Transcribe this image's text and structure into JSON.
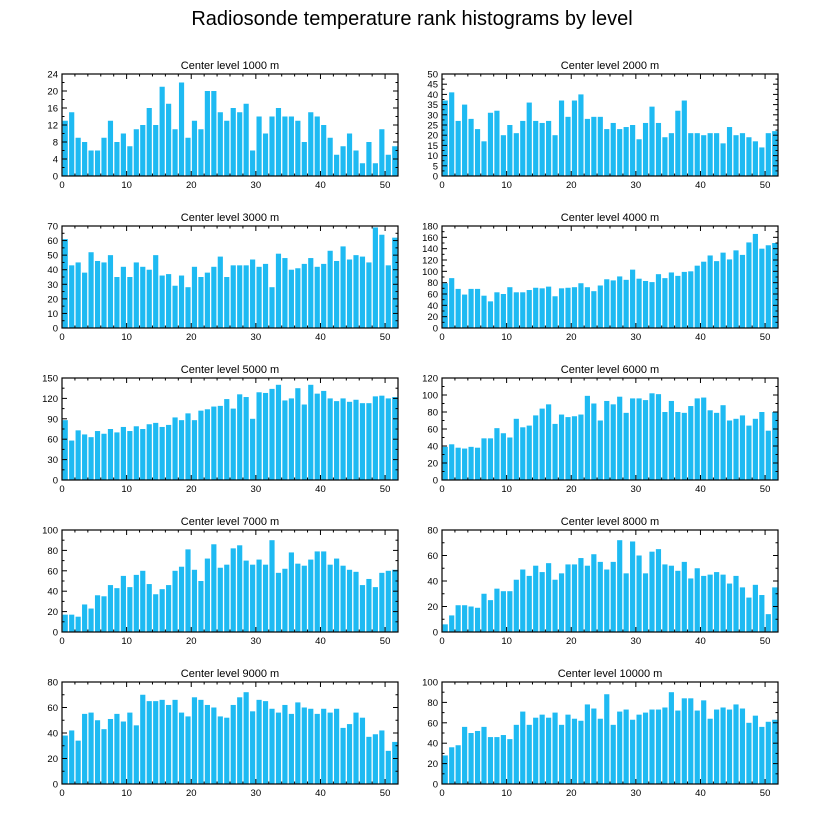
{
  "figure_title": "Radiosonde temperature rank histograms by level",
  "chart_data": [
    {
      "type": "bar",
      "title": "Center level 1000 m",
      "x_range": [
        0,
        52
      ],
      "ylim": [
        0,
        24
      ],
      "xticks": [
        0,
        10,
        20,
        30,
        40,
        50
      ],
      "yticks": [
        0,
        4,
        8,
        12,
        16,
        20,
        24
      ],
      "values": [
        13,
        15,
        9,
        8,
        6,
        6,
        9,
        13,
        8,
        10,
        7,
        11,
        12,
        16,
        12,
        21,
        17,
        11,
        22,
        9,
        13,
        11,
        20,
        20,
        15,
        13,
        16,
        15,
        17,
        6,
        14,
        10,
        14,
        16,
        14,
        14,
        13,
        8,
        15,
        14,
        12,
        9,
        5,
        7,
        10,
        6,
        3,
        8,
        3,
        11,
        5,
        7
      ]
    },
    {
      "type": "bar",
      "title": "Center level 2000 m",
      "x_range": [
        0,
        52
      ],
      "ylim": [
        0,
        50
      ],
      "xticks": [
        0,
        10,
        20,
        30,
        40,
        50
      ],
      "yticks": [
        0,
        5,
        10,
        15,
        20,
        25,
        30,
        35,
        40,
        45,
        50
      ],
      "values": [
        37,
        41,
        27,
        35,
        28,
        23,
        17,
        31,
        32,
        20,
        25,
        21,
        27,
        36,
        27,
        26,
        27,
        20,
        37,
        29,
        37,
        40,
        28,
        29,
        29,
        23,
        26,
        23,
        24,
        25,
        18,
        26,
        34,
        26,
        19,
        21,
        32,
        37,
        21,
        21,
        20,
        21,
        21,
        16,
        24,
        20,
        21,
        19,
        17,
        14,
        21,
        22
      ]
    },
    {
      "type": "bar",
      "title": "Center level 3000 m",
      "x_range": [
        0,
        52
      ],
      "ylim": [
        0,
        70
      ],
      "xticks": [
        0,
        10,
        20,
        30,
        40,
        50
      ],
      "yticks": [
        0,
        10,
        20,
        30,
        40,
        50,
        60,
        70
      ],
      "values": [
        61,
        43,
        45,
        38,
        52,
        46,
        45,
        50,
        35,
        42,
        35,
        45,
        42,
        40,
        50,
        36,
        37,
        29,
        36,
        28,
        42,
        35,
        38,
        42,
        49,
        35,
        43,
        43,
        43,
        47,
        42,
        44,
        28,
        51,
        48,
        40,
        41,
        44,
        48,
        42,
        44,
        53,
        46,
        56,
        47,
        50,
        49,
        45,
        69,
        64,
        43,
        62
      ]
    },
    {
      "type": "bar",
      "title": "Center level 4000 m",
      "x_range": [
        0,
        52
      ],
      "ylim": [
        0,
        180
      ],
      "xticks": [
        0,
        10,
        20,
        30,
        40,
        50
      ],
      "yticks": [
        0,
        20,
        40,
        60,
        80,
        100,
        120,
        140,
        160,
        180
      ],
      "values": [
        79,
        88,
        69,
        59,
        69,
        69,
        57,
        47,
        63,
        60,
        72,
        63,
        63,
        67,
        71,
        70,
        73,
        56,
        70,
        71,
        72,
        79,
        72,
        65,
        75,
        86,
        84,
        91,
        85,
        103,
        87,
        83,
        81,
        95,
        88,
        98,
        92,
        99,
        100,
        110,
        117,
        128,
        118,
        133,
        121,
        137,
        129,
        151,
        166,
        140,
        146,
        150
      ]
    },
    {
      "type": "bar",
      "title": "Center level 5000 m",
      "x_range": [
        0,
        52
      ],
      "ylim": [
        0,
        150
      ],
      "xticks": [
        0,
        10,
        20,
        30,
        40,
        50
      ],
      "yticks": [
        0,
        30,
        60,
        90,
        120,
        150
      ],
      "values": [
        88,
        58,
        73,
        67,
        63,
        72,
        68,
        75,
        70,
        78,
        72,
        79,
        75,
        82,
        84,
        78,
        81,
        92,
        88,
        98,
        88,
        102,
        104,
        108,
        109,
        119,
        105,
        126,
        122,
        90,
        129,
        128,
        134,
        140,
        117,
        120,
        135,
        111,
        140,
        127,
        131,
        120,
        116,
        120,
        115,
        118,
        113,
        113,
        123,
        124,
        120,
        122
      ]
    },
    {
      "type": "bar",
      "title": "Center level 6000 m",
      "x_range": [
        0,
        52
      ],
      "ylim": [
        0,
        120
      ],
      "xticks": [
        0,
        10,
        20,
        30,
        40,
        50
      ],
      "yticks": [
        0,
        20,
        40,
        60,
        80,
        100,
        120
      ],
      "values": [
        39,
        42,
        38,
        37,
        39,
        38,
        49,
        49,
        61,
        55,
        50,
        72,
        62,
        64,
        76,
        84,
        89,
        66,
        77,
        74,
        75,
        77,
        99,
        90,
        70,
        93,
        89,
        98,
        79,
        96,
        96,
        94,
        102,
        101,
        80,
        93,
        80,
        79,
        87,
        96,
        97,
        82,
        79,
        88,
        70,
        72,
        76,
        64,
        72,
        80,
        58,
        80
      ]
    },
    {
      "type": "bar",
      "title": "Center level 7000 m",
      "x_range": [
        0,
        52
      ],
      "ylim": [
        0,
        100
      ],
      "xticks": [
        0,
        10,
        20,
        30,
        40,
        50
      ],
      "yticks": [
        0,
        20,
        40,
        60,
        80,
        100
      ],
      "values": [
        17,
        17,
        15,
        27,
        23,
        36,
        35,
        46,
        43,
        55,
        44,
        56,
        60,
        47,
        37,
        42,
        46,
        60,
        64,
        81,
        61,
        50,
        72,
        86,
        63,
        66,
        82,
        85,
        70,
        66,
        71,
        66,
        90,
        58,
        62,
        78,
        67,
        65,
        71,
        79,
        79,
        66,
        72,
        65,
        61,
        59,
        46,
        52,
        44,
        58,
        60,
        61
      ]
    },
    {
      "type": "bar",
      "title": "Center level 8000 m",
      "x_range": [
        0,
        52
      ],
      "ylim": [
        0,
        80
      ],
      "xticks": [
        0,
        10,
        20,
        30,
        40,
        50
      ],
      "yticks": [
        0,
        20,
        40,
        60,
        80
      ],
      "values": [
        6,
        13,
        21,
        21,
        20,
        19,
        30,
        25,
        34,
        32,
        32,
        41,
        49,
        44,
        52,
        47,
        54,
        41,
        46,
        53,
        53,
        58,
        52,
        61,
        55,
        49,
        55,
        72,
        46,
        71,
        60,
        46,
        63,
        65,
        53,
        52,
        48,
        55,
        42,
        50,
        44,
        45,
        47,
        45,
        38,
        44,
        35,
        27,
        37,
        29,
        14,
        35
      ]
    },
    {
      "type": "bar",
      "title": "Center level 9000 m",
      "x_range": [
        0,
        52
      ],
      "ylim": [
        0,
        80
      ],
      "xticks": [
        0,
        10,
        20,
        30,
        40,
        50
      ],
      "yticks": [
        0,
        20,
        40,
        60,
        80
      ],
      "values": [
        38,
        42,
        34,
        55,
        56,
        50,
        43,
        51,
        55,
        49,
        56,
        46,
        70,
        65,
        65,
        66,
        62,
        66,
        56,
        53,
        68,
        66,
        62,
        60,
        53,
        52,
        62,
        68,
        72,
        57,
        66,
        65,
        59,
        56,
        62,
        55,
        64,
        60,
        59,
        55,
        59,
        56,
        59,
        44,
        47,
        56,
        52,
        37,
        39,
        42,
        26,
        33
      ]
    },
    {
      "type": "bar",
      "title": "Center level 10000 m",
      "x_range": [
        0,
        52
      ],
      "ylim": [
        0,
        100
      ],
      "xticks": [
        0,
        10,
        20,
        30,
        40,
        50
      ],
      "yticks": [
        0,
        20,
        40,
        60,
        80,
        100
      ],
      "values": [
        28,
        36,
        38,
        56,
        50,
        52,
        56,
        46,
        46,
        48,
        44,
        58,
        71,
        58,
        65,
        68,
        65,
        70,
        58,
        68,
        64,
        62,
        78,
        74,
        64,
        88,
        58,
        71,
        73,
        63,
        68,
        70,
        73,
        73,
        75,
        90,
        72,
        84,
        84,
        72,
        82,
        64,
        73,
        75,
        73,
        78,
        74,
        60,
        67,
        56,
        61,
        63
      ]
    }
  ],
  "colors": {
    "bar": "#1ebaf2",
    "axis": "#000000",
    "background": "#ffffff"
  }
}
